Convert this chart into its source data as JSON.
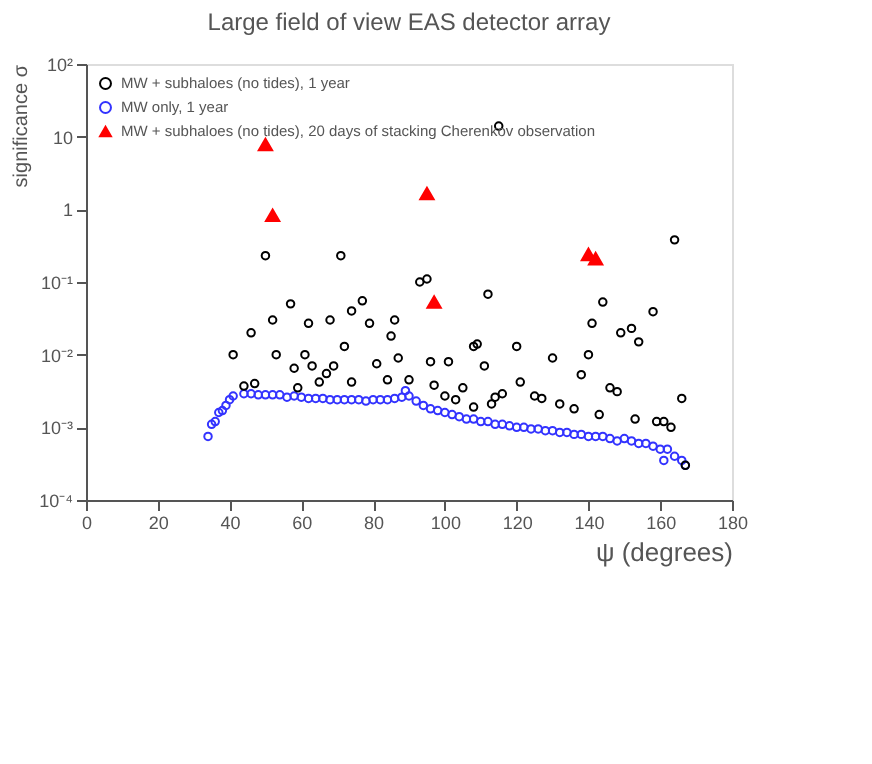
{
  "chart_data": {
    "type": "scatter",
    "title": "Large field of view EAS detector array",
    "xlabel": "ψ (degrees)",
    "ylabel": "significance σ",
    "log": "y",
    "grid": false,
    "legend": "top left",
    "xlim": [
      0,
      180
    ],
    "xticks": [
      0,
      20,
      40,
      60,
      80,
      100,
      120,
      140,
      160,
      180
    ],
    "ylim": [
      0.0001,
      100
    ],
    "yticks": [
      {
        "value": 0.0001,
        "label": "10⁻⁴"
      },
      {
        "value": 0.001,
        "label": "10⁻³"
      },
      {
        "value": 0.01,
        "label": "10⁻²"
      },
      {
        "value": 0.1,
        "label": "10⁻¹"
      },
      1,
      10,
      {
        "value": 100,
        "label": "10²"
      }
    ],
    "series": [
      {
        "name": "MW + subhaloes (no tides), 1 year",
        "color": "#000000",
        "marker": "circle",
        "x": [
          50,
          71,
          41,
          46,
          52,
          57,
          62,
          68,
          72,
          74,
          77,
          79,
          86,
          85,
          93,
          95,
          53,
          61,
          87,
          115,
          164,
          112,
          144,
          141,
          149,
          152,
          158,
          154,
          108,
          109,
          120,
          130,
          140,
          96,
          101,
          111,
          44,
          47,
          58,
          63,
          65,
          67,
          69,
          74,
          81,
          84,
          90,
          59,
          138,
          146,
          148,
          153,
          166,
          97,
          100,
          105,
          103,
          121,
          116,
          114,
          125,
          127,
          132,
          136,
          143,
          159,
          163,
          167,
          113,
          108,
          161
        ],
        "values": [
          0.23,
          0.23,
          0.01,
          0.02,
          0.03,
          0.05,
          0.027,
          0.03,
          0.013,
          0.04,
          0.055,
          0.027,
          0.03,
          0.018,
          0.1,
          0.11,
          0.01,
          0.01,
          0.009,
          14,
          0.38,
          0.068,
          0.053,
          0.027,
          0.02,
          0.023,
          0.039,
          0.015,
          0.013,
          0.014,
          0.013,
          0.009,
          0.01,
          0.008,
          0.008,
          0.007,
          0.0037,
          0.004,
          0.0065,
          0.007,
          0.0042,
          0.0055,
          0.007,
          0.0042,
          0.0075,
          0.0045,
          0.0045,
          0.0035,
          0.0053,
          0.0035,
          0.0031,
          0.0013,
          0.0025,
          0.0038,
          0.0027,
          0.0035,
          0.0024,
          0.0042,
          0.0029,
          0.0026,
          0.0027,
          0.0025,
          0.0021,
          0.0018,
          0.0015,
          0.0012,
          0.001,
          0.0003,
          0.0021,
          0.0019,
          0.0012
        ]
      },
      {
        "name": "MW only, 1 year",
        "color": "#3333ff",
        "marker": "circle",
        "x": [
          34,
          35,
          36,
          37,
          38,
          39,
          40,
          41,
          44,
          46,
          48,
          50,
          52,
          54,
          56,
          58,
          60,
          62,
          64,
          66,
          68,
          70,
          72,
          74,
          76,
          78,
          80,
          82,
          84,
          86,
          88,
          89,
          90,
          92,
          94,
          96,
          98,
          100,
          102,
          104,
          106,
          108,
          110,
          112,
          114,
          116,
          118,
          120,
          122,
          124,
          126,
          128,
          130,
          132,
          134,
          136,
          138,
          140,
          142,
          144,
          146,
          148,
          150,
          152,
          154,
          156,
          158,
          160,
          161,
          162,
          164,
          166,
          167
        ],
        "values": [
          0.00075,
          0.0011,
          0.0012,
          0.0016,
          0.0017,
          0.002,
          0.0024,
          0.0027,
          0.0029,
          0.0029,
          0.0028,
          0.0028,
          0.0028,
          0.0028,
          0.0026,
          0.0027,
          0.0026,
          0.0025,
          0.0025,
          0.0025,
          0.0024,
          0.0024,
          0.0024,
          0.0024,
          0.0024,
          0.0023,
          0.0024,
          0.0024,
          0.0024,
          0.0025,
          0.0026,
          0.0032,
          0.0027,
          0.0023,
          0.002,
          0.0018,
          0.0017,
          0.0016,
          0.0015,
          0.0014,
          0.0013,
          0.0013,
          0.0012,
          0.0012,
          0.0011,
          0.0011,
          0.00105,
          0.001,
          0.001,
          0.00095,
          0.00095,
          0.0009,
          0.0009,
          0.00085,
          0.00085,
          0.0008,
          0.0008,
          0.00075,
          0.00075,
          0.00075,
          0.0007,
          0.00065,
          0.0007,
          0.00065,
          0.0006,
          0.0006,
          0.00055,
          0.0005,
          0.00035,
          0.0005,
          0.0004,
          0.00035,
          0.0003
        ]
      },
      {
        "name": "MW + subhaloes (no tides), 20 days of stacking Cherenkov observation",
        "color": "#ff0000",
        "marker": "triangle",
        "x": [
          50,
          52,
          95,
          97,
          140,
          142
        ],
        "values": [
          7.8,
          0.83,
          1.65,
          0.053,
          0.24,
          0.21
        ]
      }
    ]
  }
}
